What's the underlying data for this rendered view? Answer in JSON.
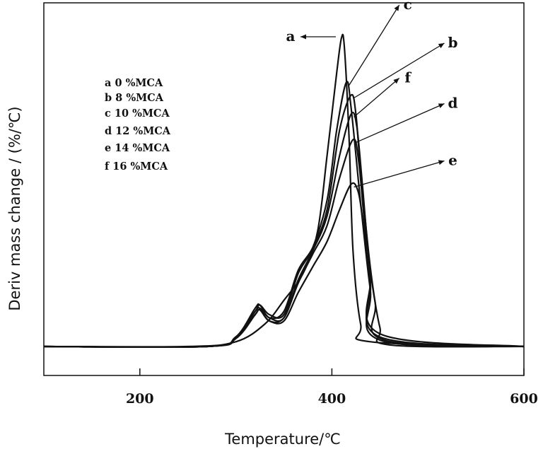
{
  "chart_data": {
    "type": "line",
    "xlabel": "Temperature/℃",
    "ylabel": "Deriv mass change / (%/℃)",
    "xlim": [
      100,
      600
    ],
    "ylim": [
      0,
      10
    ],
    "x_ticks": [
      200,
      400,
      600
    ],
    "x_tick_labels": [
      "200",
      "400",
      "600"
    ],
    "grid": false,
    "legend_position": "upper-left",
    "legend": [
      {
        "key": "a",
        "text": "a 0 %MCA"
      },
      {
        "key": "b",
        "text": "b 8 %MCA"
      },
      {
        "key": "c",
        "text": "c 10 %MCA"
      },
      {
        "key": "d",
        "text": "d 12 %MCA"
      },
      {
        "key": "e",
        "text": "e 14 %MCA"
      },
      {
        "key": "f",
        "text": "f 16 %MCA"
      }
    ],
    "series": [
      {
        "key": "a",
        "x": [
          100,
          250,
          300,
          330,
          350,
          370,
          385,
          395,
          405,
          410,
          413,
          418,
          422,
          430,
          440,
          600
        ],
        "y": [
          0.0,
          0.0,
          0.15,
          0.7,
          1.45,
          2.3,
          3.6,
          6.0,
          8.6,
          9.7,
          9.4,
          6.5,
          3.0,
          0.7,
          0.15,
          0.0
        ]
      },
      {
        "key": "b",
        "x": [
          100,
          270,
          300,
          320,
          325,
          335,
          350,
          365,
          380,
          395,
          408,
          420,
          425,
          430,
          440,
          450,
          460,
          600
        ],
        "y": [
          0.0,
          0.0,
          0.3,
          1.2,
          1.3,
          0.9,
          1.1,
          2.4,
          3.1,
          4.3,
          6.8,
          7.9,
          7.3,
          5.5,
          2.5,
          0.6,
          0.05,
          0.0
        ]
      },
      {
        "key": "c",
        "x": [
          100,
          270,
          300,
          320,
          325,
          335,
          350,
          365,
          380,
          395,
          405,
          415,
          420,
          430,
          440,
          450,
          600
        ],
        "y": [
          0.0,
          0.0,
          0.3,
          1.1,
          1.3,
          1.0,
          1.0,
          2.3,
          3.1,
          4.6,
          6.8,
          8.3,
          7.5,
          4.5,
          1.8,
          0.2,
          0.0
        ]
      },
      {
        "key": "d",
        "x": [
          100,
          270,
          300,
          320,
          325,
          335,
          350,
          365,
          380,
          395,
          408,
          422,
          428,
          435,
          445,
          455,
          600
        ],
        "y": [
          0.0,
          0.0,
          0.25,
          1.0,
          1.15,
          0.8,
          0.9,
          2.0,
          2.9,
          3.8,
          5.3,
          6.5,
          5.8,
          3.6,
          1.4,
          0.2,
          0.0
        ]
      },
      {
        "key": "e",
        "x": [
          100,
          270,
          300,
          320,
          325,
          335,
          350,
          365,
          380,
          395,
          408,
          420,
          427,
          432,
          440,
          450,
          600
        ],
        "y": [
          0.0,
          0.0,
          0.3,
          1.0,
          1.15,
          0.8,
          0.8,
          1.7,
          2.5,
          3.3,
          4.3,
          5.1,
          4.9,
          4.0,
          2.0,
          0.3,
          0.0
        ]
      },
      {
        "key": "f",
        "x": [
          100,
          270,
          300,
          320,
          325,
          335,
          350,
          365,
          380,
          395,
          408,
          420,
          426,
          432,
          440,
          450,
          600
        ],
        "y": [
          0.0,
          0.0,
          0.3,
          1.1,
          1.2,
          0.9,
          0.9,
          2.1,
          3.0,
          4.1,
          6.0,
          7.3,
          6.9,
          5.0,
          2.3,
          0.4,
          0.0
        ]
      }
    ],
    "annotations": [
      {
        "label": "a",
        "series": "a",
        "text_at": [
          357,
          9.6
        ]
      },
      {
        "label": "c",
        "series": "c",
        "text_at": [
          479,
          10.6
        ]
      },
      {
        "label": "b",
        "series": "b",
        "text_at": [
          526,
          9.4
        ]
      },
      {
        "label": "f",
        "series": "f",
        "text_at": [
          479,
          8.3
        ]
      },
      {
        "label": "d",
        "series": "d",
        "text_at": [
          526,
          7.5
        ]
      },
      {
        "label": "e",
        "series": "e",
        "text_at": [
          526,
          5.7
        ]
      }
    ]
  }
}
